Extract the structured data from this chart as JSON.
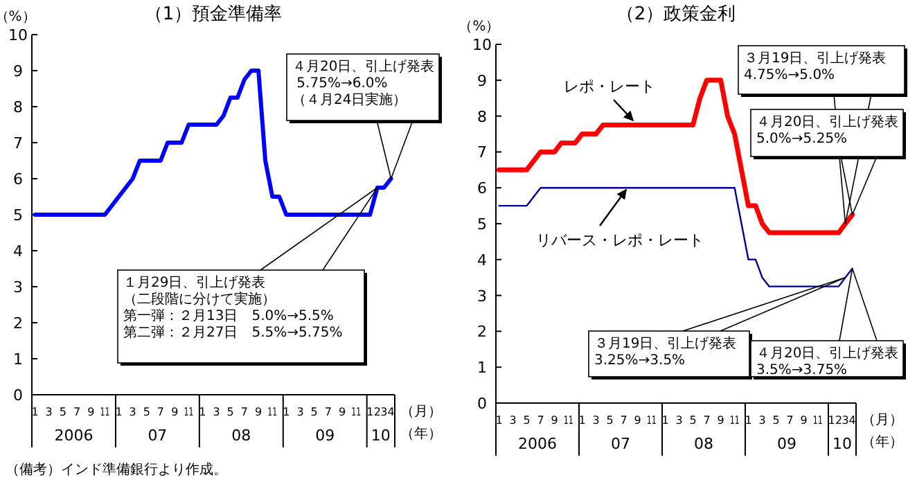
{
  "chart_data": [
    {
      "type": "line",
      "title": "（1）預金準備率",
      "ylabel": "（%）",
      "xlabel": "（月）（年）",
      "xlim": [
        "2006-01-01",
        "2010-05-01"
      ],
      "ylim": [
        0,
        10
      ],
      "yticks": [
        0,
        1,
        2,
        3,
        4,
        5,
        6,
        7,
        8,
        9,
        10
      ],
      "xticks": [
        {
          "value": "2006-01-15",
          "label": "1"
        },
        {
          "value": "2006-03-15",
          "label": "3"
        },
        {
          "value": "2006-05-15",
          "label": "5"
        },
        {
          "value": "2006-07-15",
          "label": "7"
        },
        {
          "value": "2006-09-15",
          "label": "9"
        },
        {
          "value": "2006-11-15",
          "label": "11"
        },
        {
          "value": "2007-01-15",
          "label": "1"
        },
        {
          "value": "2007-03-15",
          "label": "3"
        },
        {
          "value": "2007-05-15",
          "label": "5"
        },
        {
          "value": "2007-07-15",
          "label": "7"
        },
        {
          "value": "2007-09-15",
          "label": "9"
        },
        {
          "value": "2007-11-15",
          "label": "11"
        },
        {
          "value": "2008-01-15",
          "label": "1"
        },
        {
          "value": "2008-03-15",
          "label": "3"
        },
        {
          "value": "2008-05-15",
          "label": "5"
        },
        {
          "value": "2008-07-15",
          "label": "7"
        },
        {
          "value": "2008-09-15",
          "label": "9"
        },
        {
          "value": "2008-11-15",
          "label": "11"
        },
        {
          "value": "2009-01-15",
          "label": "1"
        },
        {
          "value": "2009-03-15",
          "label": "3"
        },
        {
          "value": "2009-05-15",
          "label": "5"
        },
        {
          "value": "2009-07-15",
          "label": "7"
        },
        {
          "value": "2009-09-15",
          "label": "9"
        },
        {
          "value": "2009-11-15",
          "label": "11"
        },
        {
          "value": "2010-01-15",
          "label": "1"
        },
        {
          "value": "2010-02-15",
          "label": "2"
        },
        {
          "value": "2010-03-15",
          "label": "3"
        },
        {
          "value": "2010-04-15",
          "label": "4"
        }
      ],
      "x": [
        "2006-01-15",
        "2006-11-15",
        "2007-01-15",
        "2007-03-15",
        "2007-04-15",
        "2007-07-15",
        "2007-08-15",
        "2007-10-15",
        "2007-11-15",
        "2008-03-15",
        "2008-04-15",
        "2008-05-15",
        "2008-06-15",
        "2008-07-15",
        "2008-08-15",
        "2008-09-15",
        "2008-10-15",
        "2008-11-15",
        "2008-12-15",
        "2009-01-15",
        "2010-01-15",
        "2010-02-15",
        "2010-03-15",
        "2010-04-15"
      ],
      "series": [
        {
          "color": "#0000ff",
          "values": [
            5.0,
            5.0,
            5.5,
            6.0,
            6.5,
            6.5,
            7.0,
            7.0,
            7.5,
            7.5,
            7.75,
            8.25,
            8.25,
            8.75,
            9.0,
            9.0,
            6.5,
            5.5,
            5.5,
            5.0,
            5.0,
            5.75,
            5.75,
            6.0
          ]
        }
      ],
      "annotations": [
        {
          "text": "４月20日、引上げ発表\n 5.75%→6.0%\n（４月24日実施）",
          "x": "2010-04-15",
          "y": 6.0
        },
        {
          "text": "１月29日、引上げ発表（二段階に分けて実施）第一弾：２月13日　5.0%→5.5%\n第二弾：２月27日　5.5%→5.75%",
          "x": "2010-02-15",
          "y": 5.75
        },
        "2006",
        "07",
        "08",
        "09",
        "10",
        "（備考）インド準備銀行より作成。"
      ]
    },
    {
      "type": "line",
      "title": "（2）政策金利",
      "ylabel": "（%）",
      "xlabel": "（月）（年）",
      "xlim": [
        "2006-01-01",
        "2010-05-01"
      ],
      "ylim": [
        0,
        10
      ],
      "yticks": [
        0,
        1,
        2,
        3,
        4,
        5,
        6,
        7,
        8,
        9,
        10
      ],
      "xticks": [
        {
          "value": "2006-01-15",
          "label": "1"
        },
        {
          "value": "2006-03-15",
          "label": "3"
        },
        {
          "value": "2006-05-15",
          "label": "5"
        },
        {
          "value": "2006-07-15",
          "label": "7"
        },
        {
          "value": "2006-09-15",
          "label": "9"
        },
        {
          "value": "2006-11-15",
          "label": "11"
        },
        {
          "value": "2007-01-15",
          "label": "1"
        },
        {
          "value": "2007-03-15",
          "label": "3"
        },
        {
          "value": "2007-05-15",
          "label": "5"
        },
        {
          "value": "2007-07-15",
          "label": "7"
        },
        {
          "value": "2007-09-15",
          "label": "9"
        },
        {
          "value": "2007-11-15",
          "label": "11"
        },
        {
          "value": "2008-01-15",
          "label": "1"
        },
        {
          "value": "2008-03-15",
          "label": "3"
        },
        {
          "value": "2008-05-15",
          "label": "5"
        },
        {
          "value": "2008-07-15",
          "label": "7"
        },
        {
          "value": "2008-09-15",
          "label": "9"
        },
        {
          "value": "2008-11-15",
          "label": "11"
        },
        {
          "value": "2009-01-15",
          "label": "1"
        },
        {
          "value": "2009-03-15",
          "label": "3"
        },
        {
          "value": "2009-05-15",
          "label": "5"
        },
        {
          "value": "2009-07-15",
          "label": "7"
        },
        {
          "value": "2009-09-15",
          "label": "9"
        },
        {
          "value": "2009-11-15",
          "label": "11"
        },
        {
          "value": "2010-01-15",
          "label": "1"
        },
        {
          "value": "2010-02-15",
          "label": "2"
        },
        {
          "value": "2010-03-15",
          "label": "3"
        },
        {
          "value": "2010-04-15",
          "label": "4"
        }
      ],
      "series": [
        {
          "name": "レポ・レート",
          "color": "#ff0000",
          "x": [
            "2006-01-15",
            "2006-05-15",
            "2006-07-15",
            "2006-09-15",
            "2006-10-15",
            "2006-12-15",
            "2007-01-15",
            "2007-03-15",
            "2007-04-15",
            "2008-05-15",
            "2008-06-15",
            "2008-07-15",
            "2008-09-15",
            "2008-10-15",
            "2008-11-15",
            "2009-01-15",
            "2009-02-15",
            "2009-03-15",
            "2009-04-15",
            "2010-02-15",
            "2010-03-15",
            "2010-04-15"
          ],
          "values": [
            6.5,
            6.5,
            7.0,
            7.0,
            7.25,
            7.25,
            7.5,
            7.5,
            7.75,
            7.75,
            8.5,
            9.0,
            9.0,
            8.0,
            7.5,
            5.5,
            5.5,
            5.0,
            4.75,
            4.75,
            5.0,
            5.25
          ]
        },
        {
          "name": "リバース・レポ・レート",
          "color": "#000099",
          "x": [
            "2006-01-15",
            "2006-05-15",
            "2006-07-15",
            "2008-11-15",
            "2009-01-15",
            "2009-02-15",
            "2009-03-15",
            "2009-04-15",
            "2010-02-15",
            "2010-03-15",
            "2010-04-15"
          ],
          "values": [
            5.5,
            5.5,
            6.0,
            6.0,
            4.0,
            4.0,
            3.5,
            3.25,
            3.25,
            3.5,
            3.75
          ]
        }
      ],
      "annotations": [
        {
          "text": "３月19日、引上げ発表\n4.75%→5.0%",
          "x": "2010-03-15",
          "y": 5.0
        },
        {
          "text": "４月20日、引上げ発表\n5.0%→5.25%",
          "x": "2010-04-15",
          "y": 5.25
        },
        {
          "text": "３月19日、引上げ発表\n3.25%→3.5%",
          "x": "2010-03-15",
          "y": 3.5
        },
        {
          "text": "４月20日、引上げ発表\n3.5%→3.75%",
          "x": "2010-04-15",
          "y": 3.75
        },
        "2006",
        "07",
        "08",
        "09",
        "10"
      ]
    }
  ]
}
